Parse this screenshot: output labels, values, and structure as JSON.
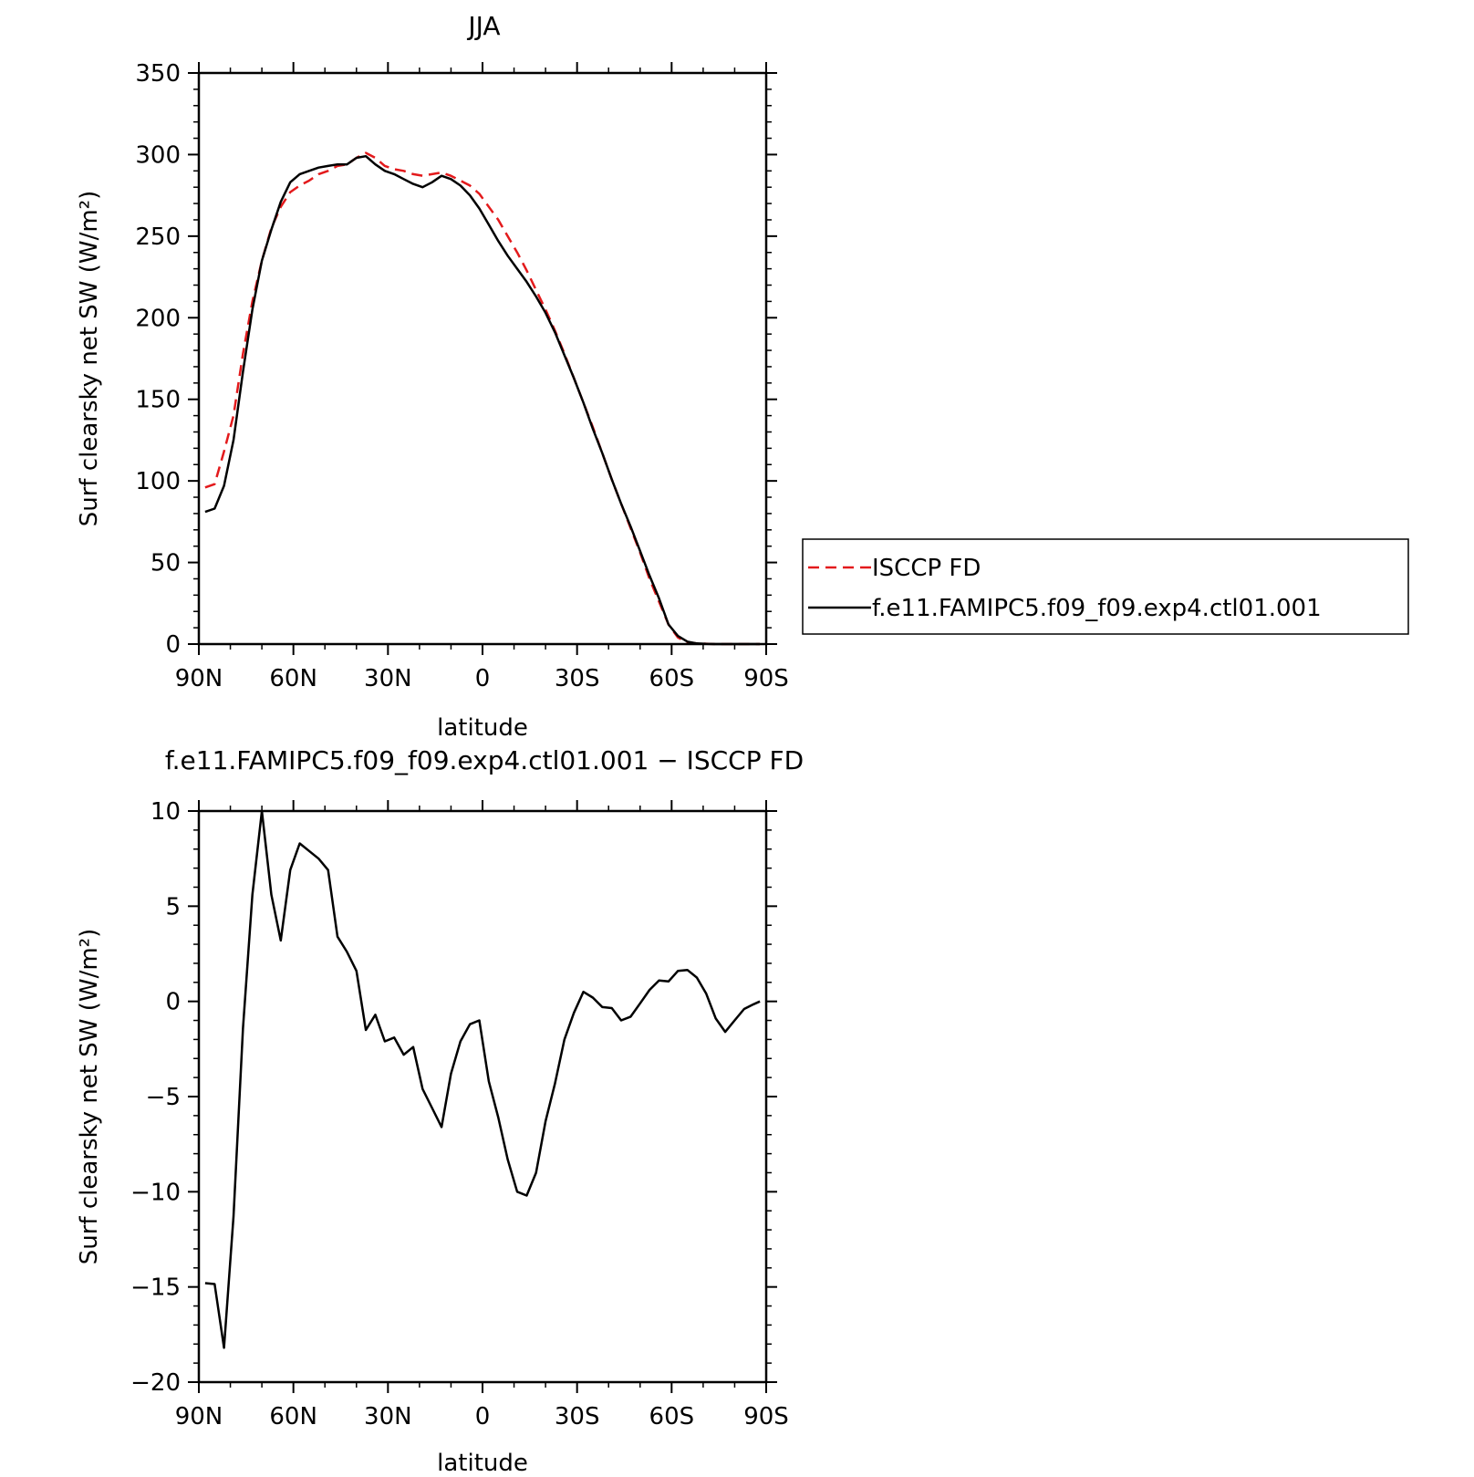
{
  "chart_data": [
    {
      "type": "line",
      "title": "JJA",
      "xlabel": "latitude",
      "ylabel": "Surf clearsky net SW (W/m²)",
      "xlim": [
        90,
        -90
      ],
      "ylim": [
        0,
        350
      ],
      "x_ticks": [
        {
          "value": 90,
          "label": "90N"
        },
        {
          "value": 60,
          "label": "60N"
        },
        {
          "value": 30,
          "label": "30N"
        },
        {
          "value": 0,
          "label": "0"
        },
        {
          "value": -30,
          "label": "30S"
        },
        {
          "value": -60,
          "label": "60S"
        },
        {
          "value": -90,
          "label": "90S"
        }
      ],
      "y_ticks": [
        0,
        50,
        100,
        150,
        200,
        250,
        300,
        350
      ],
      "legend_position": "right",
      "series": [
        {
          "name": "ISCCP FD",
          "color": "#e31a1c",
          "dash": "dashed",
          "x": [
            88,
            85,
            82,
            79,
            76,
            73,
            70,
            67,
            64,
            61,
            58,
            55,
            52,
            49,
            46,
            43,
            40,
            37,
            34,
            31,
            28,
            25,
            22,
            19,
            16,
            13,
            10,
            7,
            4,
            1,
            -2,
            -5,
            -8,
            -11,
            -14,
            -17,
            -20,
            -23,
            -26,
            -29,
            -32,
            -35,
            -38,
            -41,
            -44,
            -47,
            -50,
            -53,
            -56,
            -59,
            -62,
            -65,
            -68,
            -71,
            -74,
            -77,
            -80,
            -83,
            -86,
            -88
          ],
          "y": [
            96,
            98,
            118,
            140,
            178,
            210,
            235,
            255,
            268,
            277,
            281,
            284,
            288,
            290,
            293,
            294,
            298,
            301,
            298,
            293,
            291,
            290,
            288,
            287,
            288,
            289,
            287,
            284,
            281,
            276,
            268,
            260,
            250,
            240,
            229,
            217,
            205,
            192,
            178,
            163,
            148,
            133,
            117,
            101,
            86,
            71,
            56,
            40,
            26,
            12,
            4,
            1,
            0.4,
            0.2,
            0,
            0,
            0,
            0,
            0,
            0
          ]
        },
        {
          "name": "f.e11.FAMIPC5.f09_f09.exp4.ctl01.001",
          "color": "#000000",
          "dash": "solid",
          "x": [
            88,
            85,
            82,
            79,
            76,
            73,
            70,
            67,
            64,
            61,
            58,
            55,
            52,
            49,
            46,
            43,
            40,
            37,
            34,
            31,
            28,
            25,
            22,
            19,
            16,
            13,
            10,
            7,
            4,
            1,
            -2,
            -5,
            -8,
            -11,
            -14,
            -17,
            -20,
            -23,
            -26,
            -29,
            -32,
            -35,
            -38,
            -41,
            -44,
            -47,
            -50,
            -53,
            -56,
            -59,
            -62,
            -65,
            -68,
            -71,
            -74,
            -77,
            -80,
            -83,
            -86,
            -88
          ],
          "y": [
            81,
            83,
            97,
            125,
            167,
            205,
            235,
            254,
            271,
            283,
            288,
            290,
            292,
            293,
            294,
            294,
            298,
            299,
            294,
            290,
            288,
            285,
            282,
            280,
            283,
            287,
            285,
            281,
            275,
            267,
            257,
            247,
            238,
            230,
            222,
            213,
            203,
            191,
            177,
            163,
            148,
            132,
            117,
            101,
            86,
            72,
            57,
            42,
            28,
            12,
            5,
            1.5,
            0.4,
            0.1,
            0,
            0,
            0,
            0,
            0,
            0
          ]
        }
      ]
    },
    {
      "type": "line",
      "title": "f.e11.FAMIPC5.f09_f09.exp4.ctl01.001 − ISCCP FD",
      "xlabel": "latitude",
      "ylabel": "Surf clearsky net SW (W/m²)",
      "xlim": [
        90,
        -90
      ],
      "ylim": [
        -20,
        10
      ],
      "x_ticks": [
        {
          "value": 90,
          "label": "90N"
        },
        {
          "value": 60,
          "label": "60N"
        },
        {
          "value": 30,
          "label": "30N"
        },
        {
          "value": 0,
          "label": "0"
        },
        {
          "value": -30,
          "label": "30S"
        },
        {
          "value": -60,
          "label": "60S"
        },
        {
          "value": -90,
          "label": "90S"
        }
      ],
      "y_ticks": [
        -20,
        -15,
        -10,
        -5,
        0,
        5,
        10
      ],
      "series": [
        {
          "color": "#000000",
          "dash": "solid",
          "x": [
            88,
            85,
            82,
            79,
            76,
            73,
            70,
            67,
            64,
            61,
            58,
            55,
            52,
            49,
            46,
            43,
            40,
            37,
            34,
            31,
            28,
            25,
            22,
            19,
            16,
            13,
            10,
            7,
            4,
            1,
            -2,
            -5,
            -8,
            -11,
            -14,
            -17,
            -20,
            -23,
            -26,
            -29,
            -32,
            -35,
            -38,
            -41,
            -44,
            -47,
            -50,
            -53,
            -56,
            -59,
            -62,
            -65,
            -68,
            -71,
            -74,
            -77,
            -80,
            -83,
            -86,
            -88
          ],
          "y": [
            -14.8,
            -14.85,
            -18.2,
            -11.3,
            -1.4,
            5.6,
            10.0,
            5.6,
            3.2,
            6.9,
            8.3,
            7.9,
            7.5,
            6.9,
            3.4,
            2.6,
            1.6,
            -1.5,
            -0.7,
            -2.1,
            -1.9,
            -2.8,
            -2.4,
            -4.6,
            -5.6,
            -6.6,
            -3.8,
            -2.1,
            -1.2,
            -1.0,
            -4.2,
            -6.1,
            -8.3,
            -10.0,
            -10.2,
            -9.0,
            -6.3,
            -4.3,
            -2.0,
            -0.6,
            0.5,
            0.2,
            -0.3,
            -0.35,
            -1.0,
            -0.8,
            -0.1,
            0.6,
            1.1,
            1.05,
            1.6,
            1.65,
            1.25,
            0.4,
            -0.9,
            -1.6,
            -1.0,
            -0.4,
            -0.15,
            0
          ]
        }
      ]
    }
  ]
}
